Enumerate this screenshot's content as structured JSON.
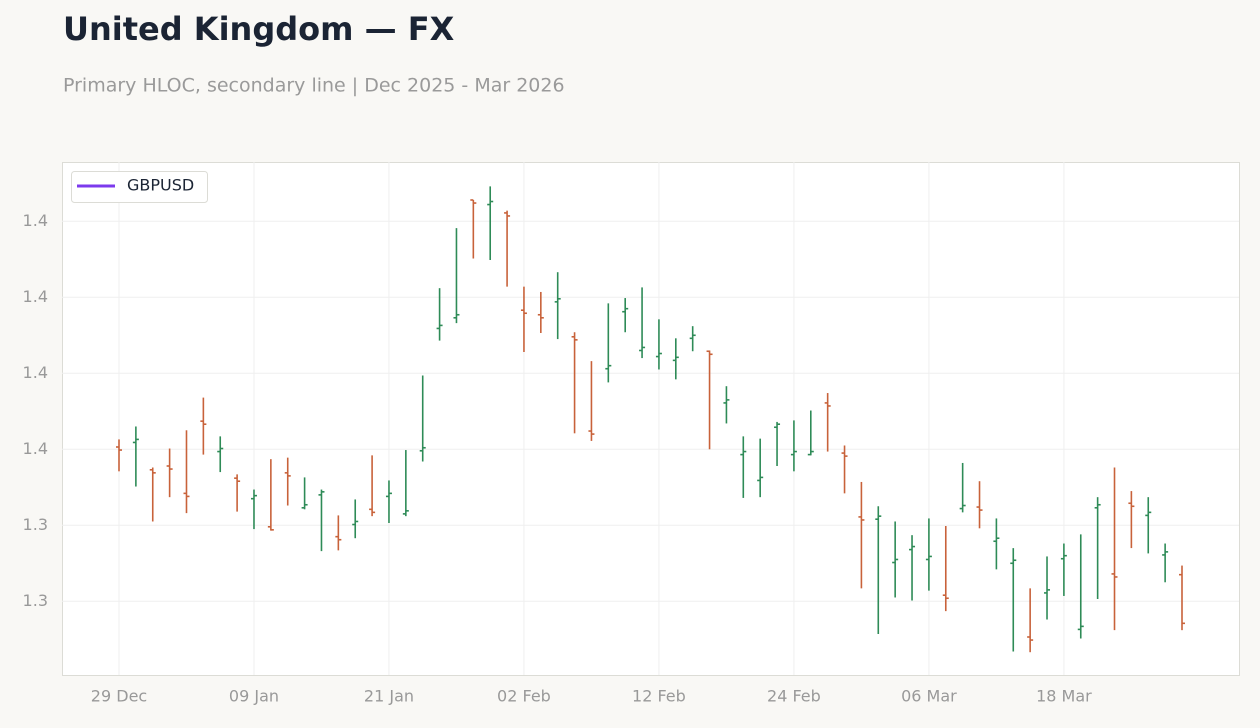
{
  "chart_data": {
    "type": "hloc",
    "title": "United Kingdom — FX",
    "subtitle": "Primary HLOC, secondary line | Dec 2025 - Mar 2026",
    "categories": [
      "29 Dec",
      null,
      null,
      null,
      null,
      null,
      null,
      null,
      "09 Jan",
      null,
      null,
      null,
      null,
      null,
      null,
      null,
      "21 Jan",
      null,
      null,
      null,
      null,
      null,
      null,
      null,
      "02 Feb",
      null,
      null,
      null,
      null,
      null,
      null,
      null,
      "12 Feb",
      null,
      null,
      null,
      null,
      null,
      null,
      null,
      "24 Feb",
      null,
      null,
      null,
      null,
      null,
      null,
      null,
      "06 Mar",
      null,
      null,
      null,
      null,
      null,
      null,
      null,
      "18 Mar",
      null,
      null,
      null,
      null,
      null,
      null,
      null
    ],
    "open": [
      1.3503,
      1.3509,
      1.3473,
      1.3478,
      1.3442,
      1.3537,
      1.3497,
      1.3462,
      1.3435,
      1.3398,
      1.3469,
      1.3423,
      1.344,
      1.3385,
      1.3401,
      1.3421,
      1.3438,
      1.3415,
      1.3498,
      1.3659,
      1.3673,
      1.3828,
      1.3822,
      1.3811,
      1.3683,
      1.3677,
      1.3694,
      1.3648,
      1.3524,
      1.3606,
      1.3681,
      1.363,
      1.3622,
      1.3617,
      1.3646,
      1.3629,
      1.3561,
      1.3493,
      1.3459,
      1.3529,
      1.3493,
      1.3493,
      1.3561,
      1.3495,
      1.3411,
      1.3408,
      1.3351,
      1.3368,
      1.3355,
      1.3308,
      1.3422,
      1.3424,
      1.3379,
      1.335,
      1.3253,
      1.3311,
      1.3356,
      1.3263,
      1.3423,
      1.3336,
      1.3429,
      1.3413,
      1.3361,
      1.3335
    ],
    "high": [
      1.3513,
      1.353,
      1.3476,
      1.3501,
      1.3525,
      1.3568,
      1.3517,
      1.3467,
      1.3447,
      1.3487,
      1.3489,
      1.3463,
      1.3447,
      1.3413,
      1.3434,
      1.3492,
      1.3459,
      1.3499,
      1.3597,
      1.3712,
      1.3791,
      1.3828,
      1.3846,
      1.3814,
      1.3714,
      1.3707,
      1.3733,
      1.3654,
      1.3616,
      1.3692,
      1.3699,
      1.3713,
      1.3671,
      1.3646,
      1.3662,
      1.363,
      1.3583,
      1.3517,
      1.3514,
      1.3536,
      1.3538,
      1.3551,
      1.3574,
      1.3505,
      1.3457,
      1.3425,
      1.3405,
      1.3387,
      1.3409,
      1.3399,
      1.3482,
      1.3458,
      1.3409,
      1.337,
      1.3317,
      1.3359,
      1.3376,
      1.3388,
      1.3437,
      1.3476,
      1.3445,
      1.3437,
      1.3376,
      1.3347
    ],
    "low": [
      1.3471,
      1.3451,
      1.3405,
      1.3437,
      1.3416,
      1.3493,
      1.347,
      1.3418,
      1.3395,
      1.3393,
      1.3426,
      1.3421,
      1.3366,
      1.3367,
      1.3383,
      1.3412,
      1.3403,
      1.3412,
      1.3484,
      1.3643,
      1.3666,
      1.3751,
      1.3749,
      1.3714,
      1.3628,
      1.3653,
      1.3645,
      1.3521,
      1.3511,
      1.3588,
      1.3654,
      1.362,
      1.3605,
      1.3592,
      1.3629,
      1.35,
      1.3534,
      1.3436,
      1.3437,
      1.3478,
      1.3471,
      1.3492,
      1.3497,
      1.3442,
      1.3317,
      1.3257,
      1.3305,
      1.3301,
      1.3314,
      1.3287,
      1.3417,
      1.3396,
      1.3342,
      1.3234,
      1.3233,
      1.3276,
      1.3307,
      1.3251,
      1.3303,
      1.3262,
      1.337,
      1.3363,
      1.3325,
      1.3262
    ],
    "close": [
      1.3499,
      1.3513,
      1.3469,
      1.3474,
      1.3438,
      1.3533,
      1.3501,
      1.3458,
      1.3439,
      1.3394,
      1.3465,
      1.3427,
      1.3444,
      1.3381,
      1.3405,
      1.3417,
      1.3442,
      1.3419,
      1.3502,
      1.3663,
      1.3677,
      1.3824,
      1.3826,
      1.3807,
      1.3679,
      1.3673,
      1.3698,
      1.3644,
      1.352,
      1.361,
      1.3685,
      1.3634,
      1.3626,
      1.3621,
      1.365,
      1.3625,
      1.3565,
      1.3497,
      1.3463,
      1.3533,
      1.3497,
      1.3497,
      1.3557,
      1.3491,
      1.3407,
      1.3412,
      1.3355,
      1.3372,
      1.3359,
      1.3304,
      1.3426,
      1.342,
      1.3383,
      1.3354,
      1.3249,
      1.3315,
      1.336,
      1.3267,
      1.3427,
      1.3332,
      1.3425,
      1.3417,
      1.3365,
      1.3271
    ],
    "up_color": "#2e8b57",
    "down_color": "#c8623a",
    "series": [
      {
        "name": "GBPUSD",
        "color": "#7c3aed"
      }
    ],
    "ylim": [
      1.3203,
      1.3878
    ],
    "yticks": [
      {
        "value": 1.38,
        "label": "1.4"
      },
      {
        "value": 1.37,
        "label": "1.4"
      },
      {
        "value": 1.36,
        "label": "1.4"
      },
      {
        "value": 1.35,
        "label": "1.4"
      },
      {
        "value": 1.34,
        "label": "1.3"
      },
      {
        "value": 1.33,
        "label": "1.3"
      }
    ],
    "grid": true,
    "legend": "upper left"
  }
}
